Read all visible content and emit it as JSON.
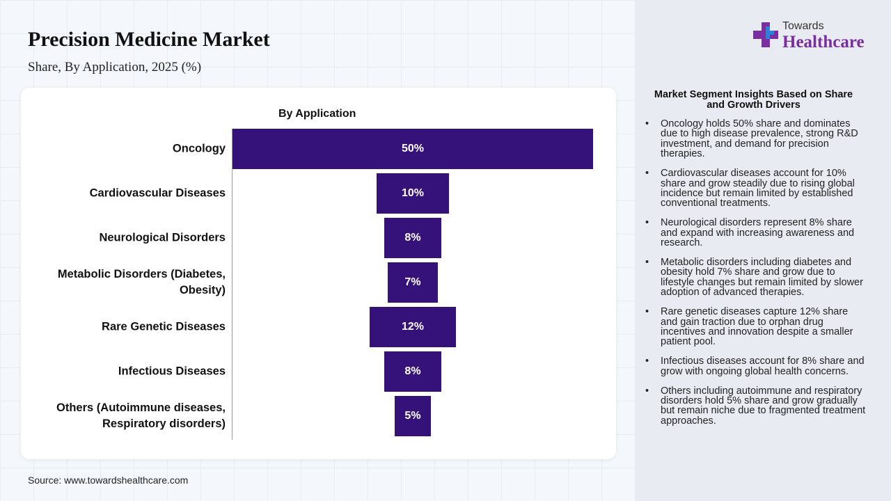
{
  "title": "Precision Medicine Market",
  "subtitle": "Share, By Application, 2025 (%)",
  "logo": {
    "top": "Towards",
    "bottom": "Healthcare"
  },
  "chart_data": {
    "type": "funnel",
    "title": "By Application",
    "categories": [
      "Oncology",
      "Cardiovascular Diseases",
      "Neurological Disorders",
      "Metabolic Disorders (Diabetes, Obesity)",
      "Rare Genetic Diseases",
      "Infectious Diseases",
      "Others (Autoimmune diseases, Respiratory disorders)"
    ],
    "values": [
      50,
      10,
      8,
      7,
      12,
      8,
      5
    ],
    "value_labels": [
      "50%",
      "10%",
      "8%",
      "7%",
      "12%",
      "8%",
      "5%"
    ],
    "color": "#35127a"
  },
  "insights": {
    "title": "Market Segment Insights Based on Share and Growth Drivers",
    "items": [
      "Oncology holds 50% share and dominates due to high disease prevalence, strong R&D investment, and demand for precision therapies.",
      "Cardiovascular diseases account for 10% share and grow steadily due to rising global incidence but remain limited by established conventional treatments.",
      "Neurological disorders represent 8% share and expand with increasing awareness and research.",
      "Metabolic disorders including diabetes and obesity hold 7% share and grow due to lifestyle changes but remain limited by slower adoption of advanced therapies.",
      "Rare genetic diseases capture 12% share and gain traction due to orphan drug incentives and innovation despite a smaller patient pool.",
      "Infectious diseases account for 8% share and grow with ongoing global health concerns.",
      "Others including autoimmune and respiratory disorders hold 5% share and grow gradually but remain niche due to fragmented treatment approaches."
    ]
  },
  "source": "Source: www.towardshealthcare.com"
}
